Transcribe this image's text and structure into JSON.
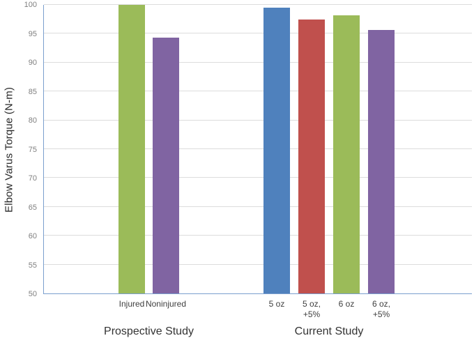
{
  "chart_data": {
    "type": "bar",
    "title": "",
    "xlabel": "",
    "ylabel": "Elbow Varus Torque (N-m)",
    "ylim": [
      50,
      100
    ],
    "ytick_step": 5,
    "grid": true,
    "legend": false,
    "categories": [
      "Injured",
      "Noninjured",
      "5 oz",
      "5 oz, +5%",
      "6 oz",
      "6 oz, +5%"
    ],
    "values": [
      100.0,
      94.3,
      99.5,
      97.5,
      98.2,
      95.6
    ],
    "groups": [
      {
        "label": "Prospective Study",
        "bars": [
          {
            "label_lines": [
              "Injured"
            ],
            "value": 100.0,
            "color": "#9BBB59"
          },
          {
            "label_lines": [
              "Noninjured"
            ],
            "value": 94.3,
            "color": "#8064A2"
          }
        ]
      },
      {
        "label": "Current Study",
        "bars": [
          {
            "label_lines": [
              "5 oz"
            ],
            "value": 99.5,
            "color": "#4F81BD"
          },
          {
            "label_lines": [
              "5 oz,",
              "+5%"
            ],
            "value": 97.5,
            "color": "#C0504D"
          },
          {
            "label_lines": [
              "6 oz"
            ],
            "value": 98.2,
            "color": "#9BBB59"
          },
          {
            "label_lines": [
              "6 oz,",
              "+5%"
            ],
            "value": 95.6,
            "color": "#8064A2"
          }
        ]
      }
    ]
  },
  "colors": {
    "bar_blue": "#4F81BD",
    "bar_red": "#C0504D",
    "bar_green": "#9BBB59",
    "bar_purple": "#8064A2",
    "axis_line": "#7A9FCE",
    "gridline": "#DCDCDC",
    "tick_label": "#7F7F7F",
    "category_label": "#3F3F3F",
    "group_label": "#333333",
    "axis_title": "#262626"
  }
}
